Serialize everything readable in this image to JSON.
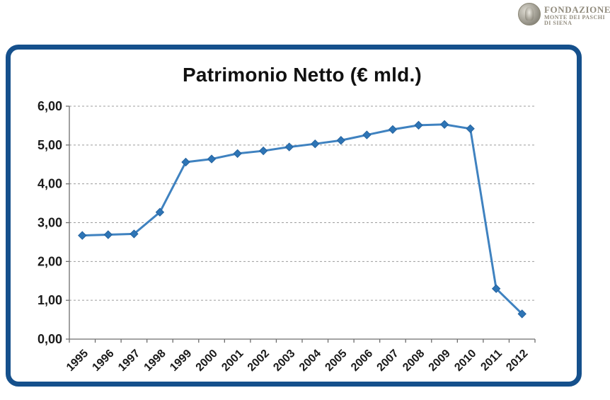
{
  "logo": {
    "line1": "FONDAZIONE",
    "line2": "MONTE DEI PASCHI",
    "line3": "DI SIENA",
    "emblem_icon": "medallion-icon",
    "text_color": "#918b7d"
  },
  "chart_data": {
    "type": "line",
    "title": "Patrimonio Netto (€ mld.)",
    "categories": [
      "1995",
      "1996",
      "1997",
      "1998",
      "1999",
      "2000",
      "2001",
      "2002",
      "2003",
      "2004",
      "2005",
      "2006",
      "2007",
      "2008",
      "2009",
      "2010",
      "2011",
      "2012"
    ],
    "values": [
      2.67,
      2.69,
      2.71,
      3.27,
      4.56,
      4.64,
      4.78,
      4.85,
      4.95,
      5.03,
      5.12,
      5.26,
      5.4,
      5.51,
      5.53,
      5.42,
      1.3,
      0.65
    ],
    "ylim": [
      0,
      6
    ],
    "ytick_step": 1,
    "ytick_labels": [
      "0,00",
      "1,00",
      "2,00",
      "3,00",
      "4,00",
      "5,00",
      "6,00"
    ],
    "xlabel": "",
    "ylabel": "",
    "legend": "none",
    "grid": "horizontal-dashed",
    "marker": "diamond",
    "colors": {
      "line": "#3f82c0",
      "marker_fill": "#2e75b6",
      "marker_stroke": "#24639f",
      "grid": "#9c9c9c",
      "axis": "#6e6e6e",
      "tick_text": "#1a1a1a",
      "frame_border": "#15508c"
    }
  }
}
